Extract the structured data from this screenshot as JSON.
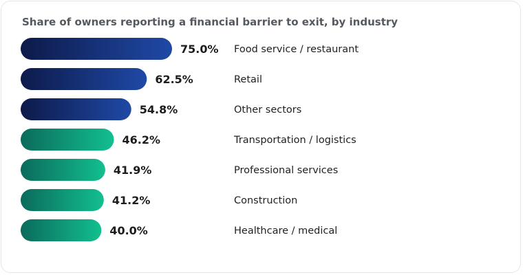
{
  "chart_data": {
    "type": "bar",
    "orientation": "horizontal",
    "title": "Share of owners reporting a financial barrier to exit, by industry",
    "categories": [
      "Food service / restaurant",
      "Retail",
      "Other sectors",
      "Transportation / logistics",
      "Professional services",
      "Construction",
      "Healthcare / medical"
    ],
    "values": [
      75.0,
      62.5,
      54.8,
      46.2,
      41.9,
      41.2,
      40.0
    ],
    "value_labels": [
      "75.0%",
      "62.5%",
      "54.8%",
      "46.2%",
      "41.9%",
      "41.2%",
      "40.0%"
    ],
    "unit": "%",
    "xlim": [
      0,
      100
    ],
    "grid": false,
    "legend": "none",
    "colors": {
      "high_start": "#0d1a4a",
      "high_end": "#1f49a6",
      "low_start": "#0b6b5c",
      "low_end": "#12bf8f"
    }
  }
}
